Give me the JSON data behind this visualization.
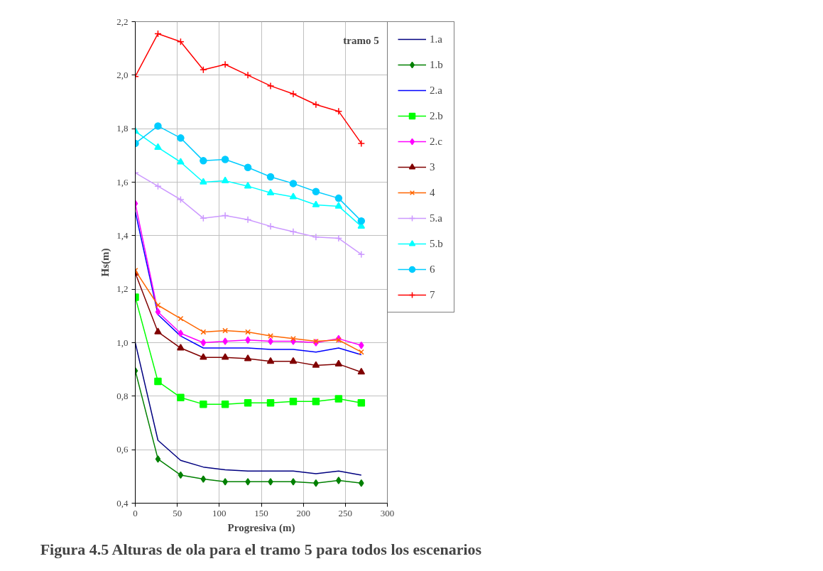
{
  "chart_data": {
    "type": "line",
    "title": "Figura 4.5 Alturas de ola para el tramo 5 para todos los escenarios",
    "xlabel": "Progresiva (m)",
    "ylabel": "Hs(m)",
    "annotations": [
      "tramo 5"
    ],
    "x": [
      0,
      27,
      54,
      81,
      107,
      134,
      161,
      188,
      215,
      242,
      269
    ],
    "xlim": [
      0,
      300
    ],
    "xticks": [
      0,
      50,
      100,
      150,
      200,
      250,
      300
    ],
    "ylim": [
      0.4,
      2.2
    ],
    "yticks": [
      {
        "value": 0.4,
        "label": "0,4"
      },
      {
        "value": 0.6,
        "label": "0,6"
      },
      {
        "value": 0.8,
        "label": "0,8"
      },
      {
        "value": 1.0,
        "label": "1,0"
      },
      {
        "value": 1.2,
        "label": "1,2"
      },
      {
        "value": 1.4,
        "label": "1,4"
      },
      {
        "value": 1.6,
        "label": "1,6"
      },
      {
        "value": 1.8,
        "label": "1,8"
      },
      {
        "value": 2.0,
        "label": "2,0"
      },
      {
        "value": 2.2,
        "label": "2,2"
      }
    ],
    "grid": true,
    "legend": "right",
    "series": [
      {
        "name": "1.a",
        "color": "#000080",
        "marker": "none",
        "values": [
          1.0,
          0.635,
          0.56,
          0.535,
          0.525,
          0.52,
          0.52,
          0.52,
          0.51,
          0.52,
          0.505
        ]
      },
      {
        "name": "1.b",
        "color": "#008000",
        "marker": "diamond",
        "values": [
          0.895,
          0.565,
          0.505,
          0.49,
          0.48,
          0.48,
          0.48,
          0.48,
          0.475,
          0.485,
          0.475
        ]
      },
      {
        "name": "2.a",
        "color": "#0000ff",
        "marker": "none",
        "values": [
          1.49,
          1.105,
          1.025,
          0.98,
          0.98,
          0.98,
          0.975,
          0.975,
          0.965,
          0.98,
          0.955
        ]
      },
      {
        "name": "2.b",
        "color": "#00ff00",
        "marker": "square",
        "values": [
          1.17,
          0.855,
          0.795,
          0.77,
          0.77,
          0.775,
          0.775,
          0.78,
          0.78,
          0.79,
          0.775
        ]
      },
      {
        "name": "2.c",
        "color": "#ff00ff",
        "marker": "diamond",
        "values": [
          1.52,
          1.115,
          1.035,
          1.0,
          1.005,
          1.01,
          1.005,
          1.005,
          1.0,
          1.015,
          0.99
        ]
      },
      {
        "name": "3",
        "color": "#800000",
        "marker": "triangle",
        "values": [
          1.26,
          1.04,
          0.98,
          0.945,
          0.945,
          0.94,
          0.93,
          0.93,
          0.915,
          0.92,
          0.89
        ]
      },
      {
        "name": "4",
        "color": "#ff6600",
        "marker": "x",
        "values": [
          1.27,
          1.14,
          1.09,
          1.04,
          1.045,
          1.04,
          1.025,
          1.015,
          1.005,
          1.01,
          0.965
        ]
      },
      {
        "name": "5.a",
        "color": "#cc99ff",
        "marker": "cross",
        "values": [
          1.635,
          1.585,
          1.535,
          1.465,
          1.475,
          1.46,
          1.435,
          1.415,
          1.395,
          1.39,
          1.33
        ]
      },
      {
        "name": "5.b",
        "color": "#00ffff",
        "marker": "triangle",
        "values": [
          1.79,
          1.73,
          1.675,
          1.6,
          1.605,
          1.585,
          1.56,
          1.545,
          1.515,
          1.51,
          1.435
        ]
      },
      {
        "name": "6",
        "color": "#00ccff",
        "marker": "circle",
        "values": [
          1.745,
          1.81,
          1.765,
          1.68,
          1.685,
          1.655,
          1.62,
          1.595,
          1.565,
          1.54,
          1.455
        ]
      },
      {
        "name": "7",
        "color": "#ff0000",
        "marker": "cross",
        "values": [
          1.995,
          2.155,
          2.125,
          2.02,
          2.04,
          2.0,
          1.96,
          1.93,
          1.89,
          1.865,
          1.745
        ]
      }
    ]
  }
}
